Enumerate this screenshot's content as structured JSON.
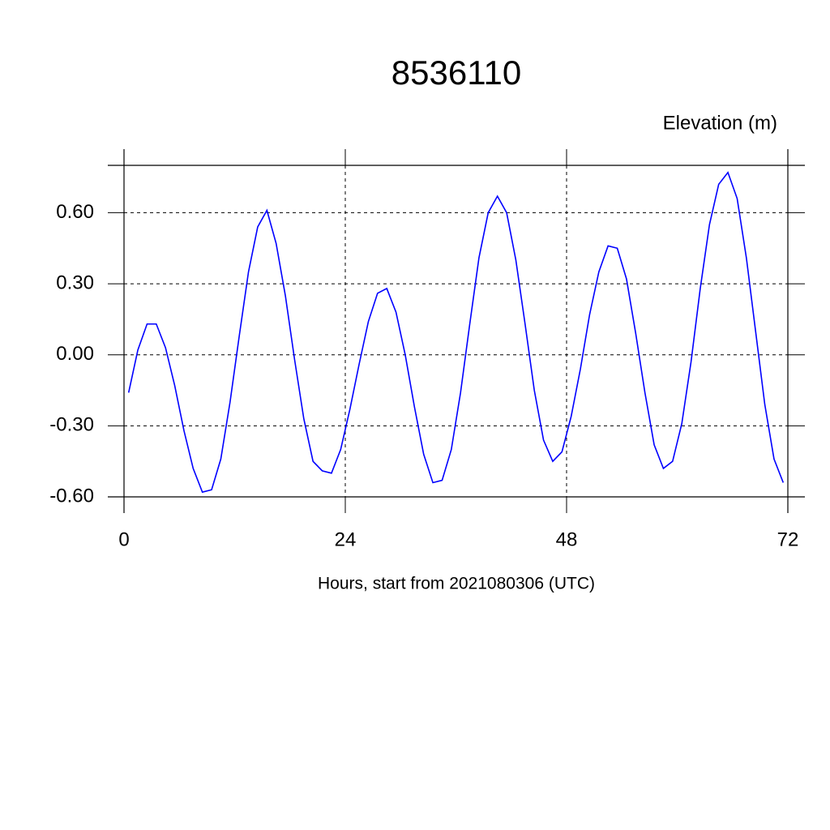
{
  "chart_data": {
    "type": "line",
    "title": "8536110",
    "subtitle": "Elevation (m)",
    "x_label": "Hours, start from 2021080306 (UTC)",
    "xlim": [
      0,
      72
    ],
    "xticks": [
      0,
      24,
      48,
      72
    ],
    "ylim": [
      -0.6,
      0.8
    ],
    "yticks": [
      {
        "value": -0.6,
        "label": "-0.60"
      },
      {
        "value": -0.3,
        "label": "-0.30"
      },
      {
        "value": 0,
        "label": "0.00"
      },
      {
        "value": 0.3,
        "label": "0.30"
      },
      {
        "value": 0.6,
        "label": "0.60"
      }
    ],
    "grid": true,
    "x": [
      0.5,
      1.5,
      2.5,
      3.5,
      4.5,
      5.5,
      6.5,
      7.5,
      8.5,
      9.5,
      10.5,
      11.5,
      12.5,
      13.5,
      14.5,
      15.5,
      16.5,
      17.5,
      18.5,
      19.5,
      20.5,
      21.5,
      22.5,
      23.5,
      24.5,
      25.5,
      26.5,
      27.5,
      28.5,
      29.5,
      30.5,
      31.5,
      32.5,
      33.5,
      34.5,
      35.5,
      36.5,
      37.5,
      38.5,
      39.5,
      40.5,
      41.5,
      42.5,
      43.5,
      44.5,
      45.5,
      46.5,
      47.5,
      48.5,
      49.5,
      50.5,
      51.5,
      52.5,
      53.5,
      54.5,
      55.5,
      56.5,
      57.5,
      58.5,
      59.5,
      60.5,
      61.5,
      62.5,
      63.5,
      64.5,
      65.5,
      66.5,
      67.5,
      68.5,
      69.5,
      70.5,
      71.5
    ],
    "series": [
      {
        "color": "#0000ff",
        "values": [
          -0.16,
          0.02,
          0.13,
          0.13,
          0.03,
          -0.13,
          -0.32,
          -0.48,
          -0.58,
          -0.57,
          -0.44,
          -0.2,
          0.08,
          0.35,
          0.54,
          0.61,
          0.47,
          0.25,
          -0.02,
          -0.27,
          -0.45,
          -0.49,
          -0.5,
          -0.4,
          -0.23,
          -0.04,
          0.14,
          0.26,
          0.28,
          0.18,
          0.0,
          -0.22,
          -0.42,
          -0.54,
          -0.53,
          -0.4,
          -0.16,
          0.13,
          0.41,
          0.6,
          0.67,
          0.6,
          0.4,
          0.13,
          -0.15,
          -0.36,
          -0.45,
          -0.41,
          -0.26,
          -0.06,
          0.17,
          0.35,
          0.46,
          0.45,
          0.32,
          0.09,
          -0.16,
          -0.38,
          -0.48,
          -0.45,
          -0.29,
          -0.03,
          0.28,
          0.55,
          0.72,
          0.77,
          0.66,
          0.41,
          0.1,
          -0.21,
          -0.44,
          -0.54
        ]
      }
    ]
  }
}
